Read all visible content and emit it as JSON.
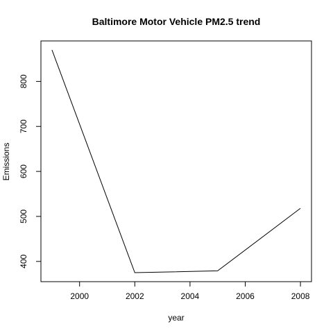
{
  "chart_data": {
    "type": "line",
    "title": "Baltimore Motor Vehicle PM2.5 trend",
    "xlabel": "year",
    "ylabel": "Emissions",
    "x": [
      1999,
      2002,
      2005,
      2008
    ],
    "y": [
      870,
      375,
      379,
      518
    ],
    "xlim": [
      1998.6,
      2008.4
    ],
    "ylim": [
      355,
      890
    ],
    "x_ticks": [
      2000,
      2002,
      2004,
      2006,
      2008
    ],
    "y_ticks": [
      400,
      500,
      600,
      700,
      800
    ],
    "grid": false,
    "line_color": "#000000"
  }
}
